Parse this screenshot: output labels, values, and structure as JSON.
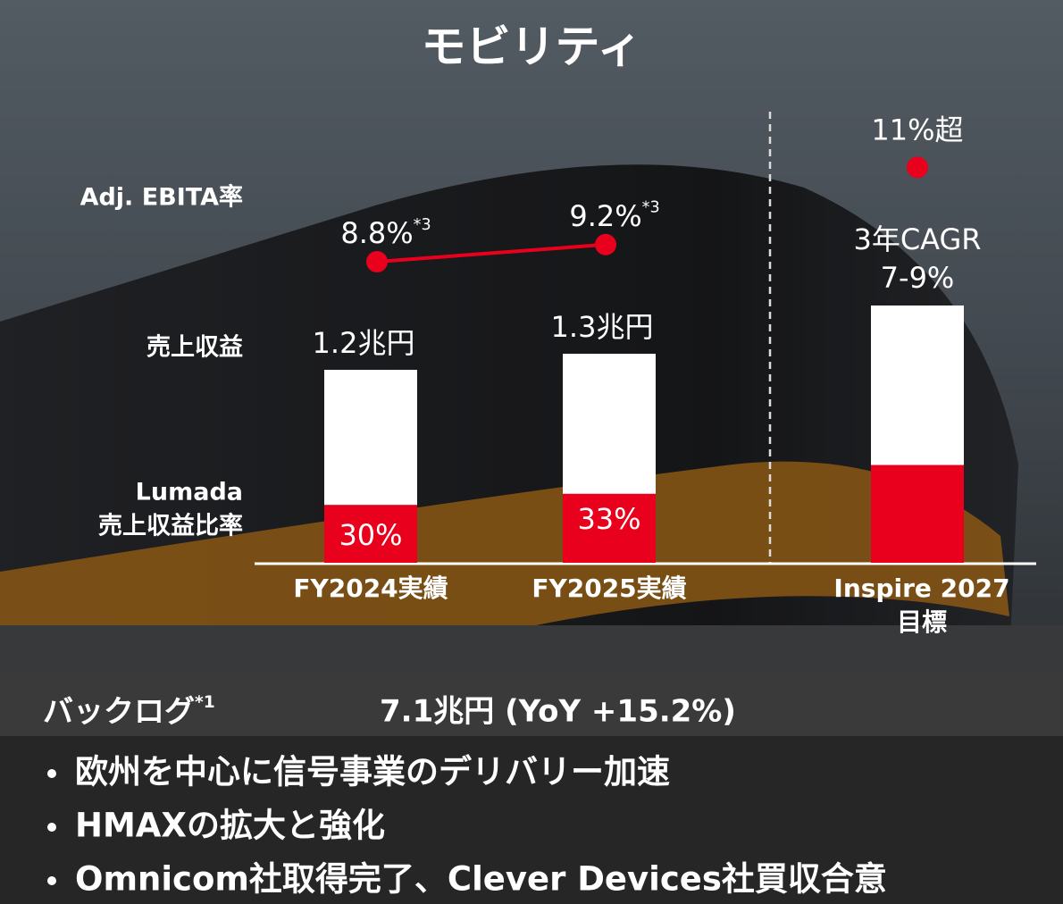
{
  "title": "モビリティ",
  "chart_data": {
    "type": "bar",
    "categories": [
      "FY2024実績",
      "FY2025実績",
      "Inspire 2027\n目標"
    ],
    "series": [
      {
        "name": "Adj. EBITA率",
        "type": "dot",
        "color": "#e8001c",
        "values": [
          8.8,
          9.2,
          11
        ],
        "value_labels": [
          "8.8%",
          "9.2%",
          "11%超"
        ],
        "footnotes": [
          "*3",
          "*3",
          null
        ]
      },
      {
        "name": "売上収益",
        "type": "bar",
        "color": "#ffffff",
        "values": [
          1.2,
          1.3,
          1.6
        ],
        "value_labels": [
          "1.2兆円",
          "1.3兆円",
          null
        ],
        "annotation": "3年CAGR\n7-9%"
      },
      {
        "name": "Lumada\n売上収益比率",
        "type": "share",
        "color": "#e8001c",
        "values": [
          30,
          33,
          38
        ],
        "value_labels": [
          "30%",
          "33%",
          null
        ]
      }
    ]
  },
  "backlog": {
    "label": "バックログ",
    "footnote": "*1",
    "value": "7.1兆円 (YoY +15.2%)"
  },
  "bullets": [
    "欧州を中心に信号事業のデリバリー加速",
    "HMAXの拡大と強化",
    "Omnicom社取得完了、Clever Devices社買収合意"
  ]
}
